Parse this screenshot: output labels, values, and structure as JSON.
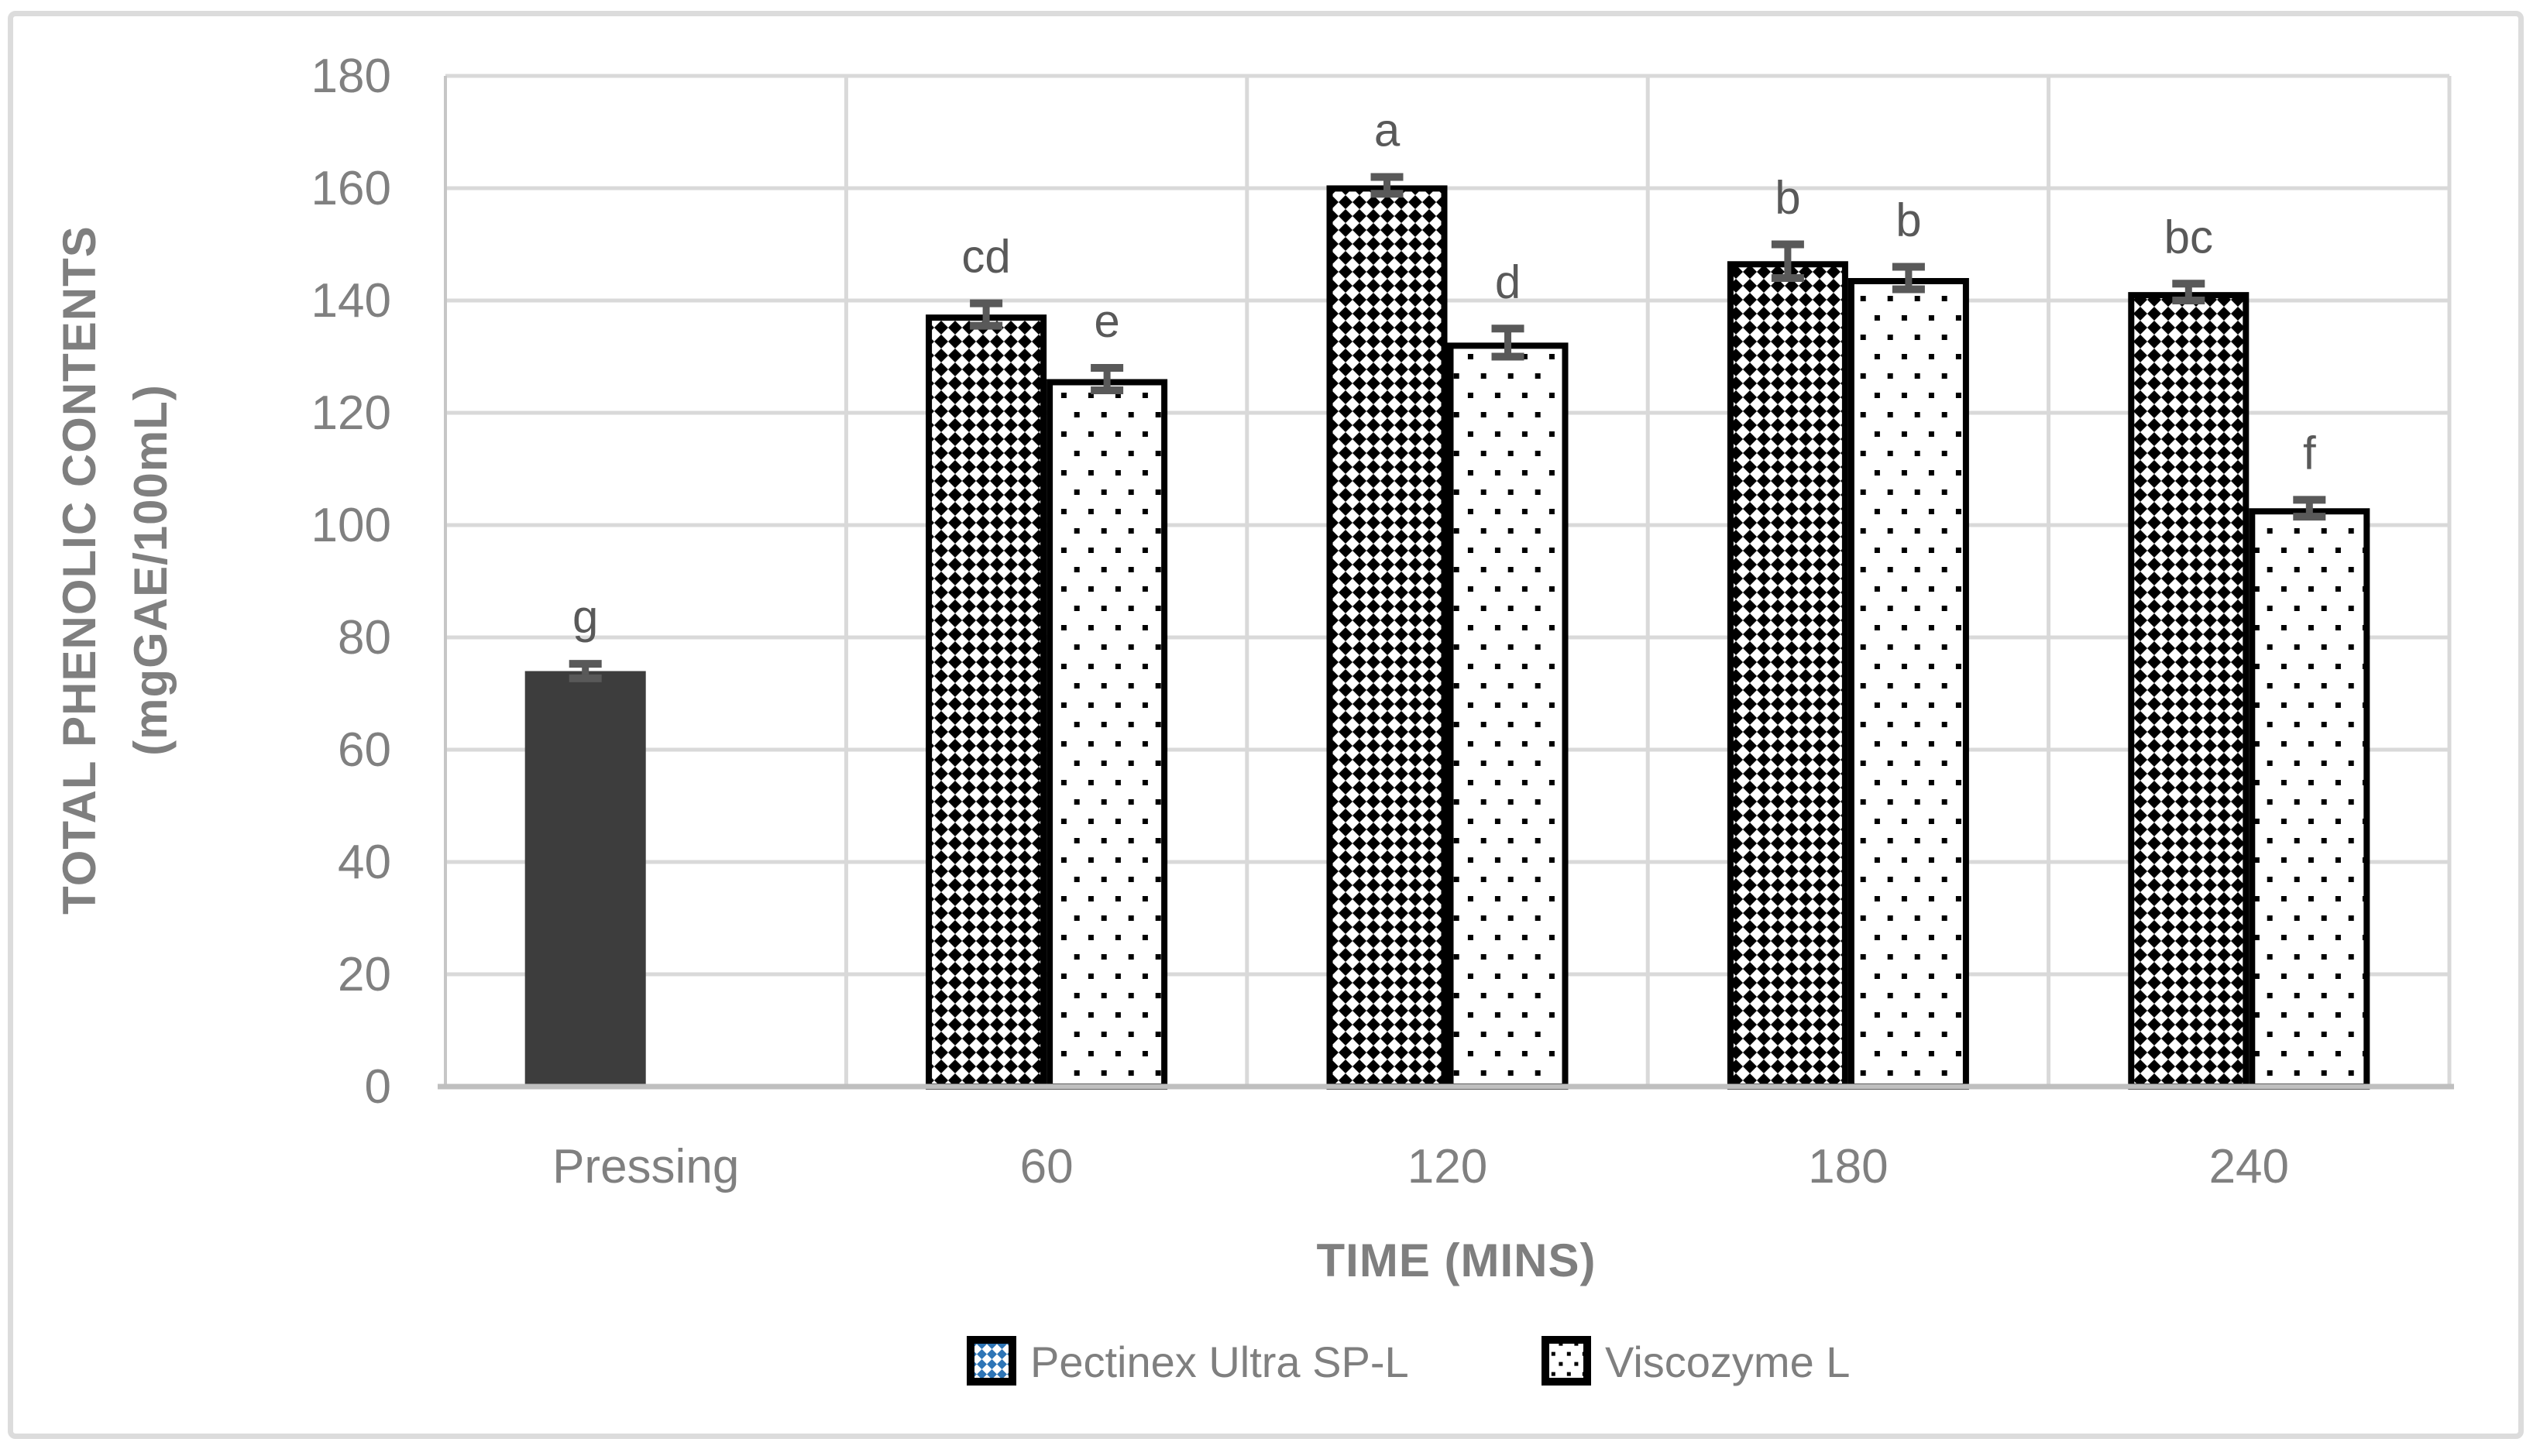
{
  "window": {
    "background": "#ffffff",
    "frame_border_color": "#dcdcdc"
  },
  "chart_data": {
    "type": "bar",
    "title": "",
    "xlabel": "TIME (MINS)",
    "ylabel": "TOTAL PHENOLIC CONTENTS (mgGAE/100mL)",
    "ylabel_lines": [
      "TOTAL PHENOLIC CONTENTS",
      "(mgGAE/100mL)"
    ],
    "ylim": [
      0,
      180
    ],
    "ytick_step": 20,
    "yticks": [
      0,
      20,
      40,
      60,
      80,
      100,
      120,
      140,
      160,
      180
    ],
    "categories": [
      "Pressing",
      "60",
      "120",
      "180",
      "240"
    ],
    "grid": true,
    "legend_position": "bottom",
    "control_bar": {
      "category": "Pressing",
      "value": 74,
      "error": 1.3,
      "letter": "g",
      "fill": "#3d3d3d"
    },
    "series": [
      {
        "name": "Pectinex Ultra SP-L",
        "pattern": "diamond-checker",
        "pattern_color": "#000000",
        "legend_pattern_color": "#2e75b6",
        "values": [
          null,
          137.5,
          160.5,
          147,
          141.5
        ],
        "errors": [
          null,
          2,
          1.5,
          3,
          1.5
        ],
        "letters": [
          "",
          "cd",
          "a",
          "b",
          "bc"
        ]
      },
      {
        "name": "Viscozyme L",
        "pattern": "dots",
        "pattern_color": "#000000",
        "legend_pattern_color": "#000000",
        "values": [
          null,
          126,
          132.5,
          144,
          103
        ],
        "errors": [
          null,
          2,
          2.5,
          2,
          1.5
        ],
        "letters": [
          "",
          "e",
          "d",
          "b",
          "f"
        ]
      }
    ],
    "colors": {
      "grid": "#d9d9d9",
      "axis_bottom": "#bfbfbf",
      "axis_left": "#c6c6c6",
      "tick_text": "#808080",
      "category_text": "#808080",
      "title_text": "#7f7f7f",
      "letter_text": "#595959",
      "error_bar": "#595959",
      "bar_border": "#000000",
      "bar_fill_bg": "#ffffff",
      "legend_text": "#7f7f7f"
    }
  }
}
